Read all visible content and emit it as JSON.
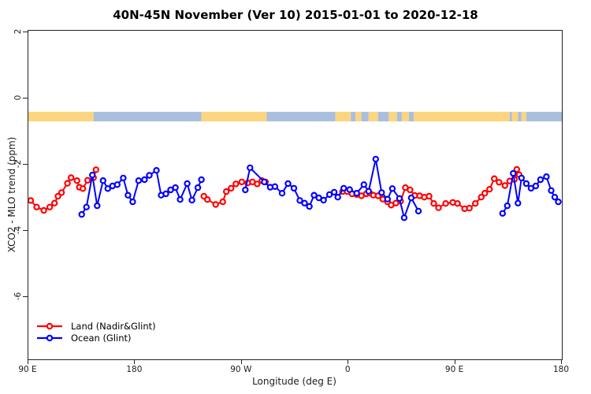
{
  "title": "40N-45N November (Ver 10)   2015-01-01 to 2020-12-18",
  "axes": {
    "x_label": "Longitude (deg E)",
    "y_label": "XCO2 - MLO trend (ppm)",
    "x_ticks": [
      {
        "label": "90 E",
        "lon": 90
      },
      {
        "label": "180",
        "lon": 180
      },
      {
        "label": "90 W",
        "lon": 270
      },
      {
        "label": "0",
        "lon": 360
      },
      {
        "label": "90 E",
        "lon": 450
      },
      {
        "label": "180",
        "lon": 540
      }
    ],
    "y_ticks": [
      {
        "label": "2",
        "value": 2
      },
      {
        "label": "0",
        "value": 0
      },
      {
        "label": "-2",
        "value": -2
      },
      {
        "label": "-4",
        "value": -4
      },
      {
        "label": "-6",
        "value": -6
      }
    ]
  },
  "legend": [
    {
      "label": "Land (Nadir&Glint)",
      "color": "#ff0000"
    },
    {
      "label": "Ocean (Glint)",
      "color": "#0000ff"
    }
  ],
  "chart_data": {
    "type": "line",
    "title": "40N-45N November (Ver 10)   2015-01-01 to 2020-12-18",
    "xlabel": "Longitude (deg E)",
    "ylabel": "XCO2 - MLO trend (ppm)",
    "x_domain": [
      90,
      540
    ],
    "y_domain": [
      2.05,
      -7.88
    ],
    "grid": false,
    "legend_position": "bottom-left",
    "marker": "open-circle",
    "series": [
      {
        "name": "Land (Nadir&Glint)",
        "color": "#ff0000",
        "points": [
          [
            92,
            -3.08
          ],
          [
            97,
            -3.28
          ],
          [
            103,
            -3.38
          ],
          [
            108,
            -3.28
          ],
          [
            112,
            -3.16
          ],
          [
            115,
            -2.95
          ],
          [
            118,
            -2.84
          ],
          [
            123,
            -2.56
          ],
          [
            126,
            -2.39
          ],
          [
            131,
            -2.48
          ],
          [
            133,
            -2.68
          ],
          [
            136,
            -2.72
          ],
          [
            140,
            -2.47
          ],
          [
            145,
            -2.39
          ],
          [
            147,
            -2.15
          ],
          null,
          [
            238,
            -2.95
          ],
          [
            241,
            -3.05
          ],
          [
            248,
            -3.2
          ],
          [
            254,
            -3.12
          ],
          [
            257,
            -2.81
          ],
          [
            261,
            -2.71
          ],
          [
            265,
            -2.58
          ],
          [
            270,
            -2.52
          ],
          [
            275,
            -2.55
          ],
          [
            279,
            -2.52
          ],
          [
            283,
            -2.58
          ],
          [
            287,
            -2.48
          ],
          [
            290,
            -2.52
          ],
          null,
          [
            355,
            -2.81
          ],
          [
            359,
            -2.81
          ],
          [
            363,
            -2.88
          ],
          [
            367,
            -2.9
          ],
          [
            371,
            -2.94
          ],
          [
            375,
            -2.88
          ],
          [
            378,
            -2.86
          ],
          [
            381,
            -2.92
          ],
          [
            385,
            -2.94
          ],
          [
            389,
            -3.04
          ],
          [
            393,
            -3.12
          ],
          [
            396,
            -3.22
          ],
          [
            400,
            -3.16
          ],
          [
            404,
            -3.1
          ],
          [
            408,
            -2.69
          ],
          [
            412,
            -2.76
          ],
          [
            416,
            -2.93
          ],
          [
            420,
            -2.94
          ],
          [
            424,
            -2.98
          ],
          [
            428,
            -2.95
          ],
          [
            432,
            -3.17
          ],
          [
            436,
            -3.3
          ],
          [
            442,
            -3.17
          ],
          [
            448,
            -3.14
          ],
          [
            452,
            -3.17
          ],
          [
            458,
            -3.33
          ],
          [
            462,
            -3.31
          ],
          [
            467,
            -3.17
          ],
          [
            472,
            -2.98
          ],
          [
            475,
            -2.86
          ],
          [
            479,
            -2.74
          ],
          [
            483,
            -2.42
          ],
          [
            487,
            -2.53
          ],
          [
            492,
            -2.63
          ],
          [
            496,
            -2.49
          ],
          [
            500,
            -2.44
          ],
          [
            502,
            -2.14
          ],
          [
            504,
            -2.3
          ]
        ]
      },
      {
        "name": "Ocean (Glint)",
        "color": "#0000ff",
        "points": [
          [
            135,
            -3.5
          ],
          [
            139,
            -3.28
          ],
          [
            144,
            -2.31
          ],
          [
            148,
            -3.24
          ],
          [
            153,
            -2.48
          ],
          [
            157,
            -2.72
          ],
          [
            161,
            -2.64
          ],
          [
            165,
            -2.6
          ],
          [
            170,
            -2.4
          ],
          [
            174,
            -2.92
          ],
          [
            178,
            -3.12
          ],
          [
            183,
            -2.48
          ],
          [
            188,
            -2.45
          ],
          [
            192,
            -2.32
          ],
          [
            198,
            -2.17
          ],
          [
            202,
            -2.92
          ],
          [
            206,
            -2.88
          ],
          [
            210,
            -2.76
          ],
          [
            214,
            -2.69
          ],
          [
            218,
            -3.05
          ],
          [
            224,
            -2.57
          ],
          [
            228,
            -3.07
          ],
          [
            233,
            -2.69
          ],
          [
            236,
            -2.45
          ],
          null,
          [
            273,
            -2.76
          ],
          [
            277,
            -2.09
          ],
          [
            289,
            -2.52
          ],
          [
            294,
            -2.68
          ],
          [
            298,
            -2.66
          ],
          [
            304,
            -2.86
          ],
          [
            309,
            -2.57
          ],
          [
            314,
            -2.71
          ],
          [
            319,
            -3.08
          ],
          [
            323,
            -3.16
          ],
          [
            327,
            -3.26
          ],
          [
            331,
            -2.92
          ],
          [
            335,
            -3.0
          ],
          [
            339,
            -3.07
          ],
          [
            344,
            -2.9
          ],
          [
            348,
            -2.83
          ],
          [
            351,
            -2.98
          ],
          [
            356,
            -2.71
          ],
          [
            361,
            -2.75
          ],
          [
            367,
            -2.86
          ],
          [
            373,
            -2.6
          ],
          [
            377,
            -2.8
          ],
          [
            383,
            -1.83
          ],
          [
            388,
            -2.84
          ],
          [
            393,
            -3.04
          ],
          [
            397,
            -2.72
          ],
          [
            403,
            -3.02
          ],
          [
            407,
            -3.6
          ],
          [
            413,
            -3.0
          ],
          [
            419,
            -3.4
          ],
          null,
          [
            490,
            -3.47
          ],
          [
            494,
            -3.24
          ],
          [
            499,
            -2.26
          ],
          [
            503,
            -3.16
          ],
          [
            506,
            -2.4
          ],
          [
            510,
            -2.57
          ],
          [
            514,
            -2.71
          ],
          [
            518,
            -2.64
          ],
          [
            522,
            -2.45
          ],
          [
            527,
            -2.36
          ],
          [
            531,
            -2.78
          ],
          [
            534,
            -2.98
          ],
          [
            537,
            -3.12
          ]
        ]
      }
    ],
    "surface_band": {
      "description": "land/ocean strip",
      "top_ppm": -0.4,
      "bottom_ppm": -0.69,
      "land_color": "#fbd57f",
      "ocean_color": "#a9bfdd",
      "segments": [
        {
          "from": 90,
          "to": 145,
          "type": "land"
        },
        {
          "from": 145,
          "to": 236,
          "type": "ocean"
        },
        {
          "from": 236,
          "to": 291,
          "type": "land"
        },
        {
          "from": 291,
          "to": 349,
          "type": "ocean"
        },
        {
          "from": 349,
          "to": 362,
          "type": "land"
        },
        {
          "from": 362,
          "to": 366,
          "type": "ocean"
        },
        {
          "from": 366,
          "to": 371,
          "type": "land"
        },
        {
          "from": 371,
          "to": 377,
          "type": "ocean"
        },
        {
          "from": 377,
          "to": 385,
          "type": "land"
        },
        {
          "from": 385,
          "to": 394,
          "type": "ocean"
        },
        {
          "from": 394,
          "to": 401,
          "type": "land"
        },
        {
          "from": 401,
          "to": 405,
          "type": "ocean"
        },
        {
          "from": 405,
          "to": 411,
          "type": "land"
        },
        {
          "from": 411,
          "to": 415,
          "type": "ocean"
        },
        {
          "from": 415,
          "to": 496,
          "type": "land"
        },
        {
          "from": 496,
          "to": 498,
          "type": "ocean"
        },
        {
          "from": 498,
          "to": 503,
          "type": "land"
        },
        {
          "from": 503,
          "to": 506,
          "type": "ocean"
        },
        {
          "from": 506,
          "to": 510,
          "type": "land"
        },
        {
          "from": 510,
          "to": 540,
          "type": "ocean"
        }
      ]
    }
  }
}
